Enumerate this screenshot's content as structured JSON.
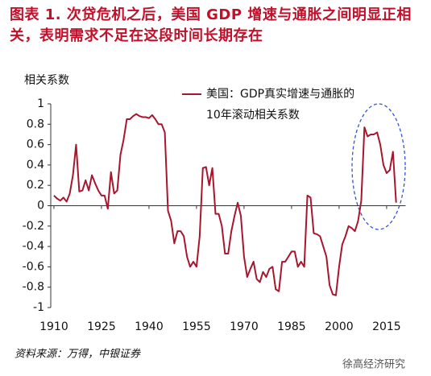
{
  "chart_data": {
    "type": "line",
    "title": "图表 1. 次贷危机之后，美国 GDP 增速与通胀之间明显正相关，表明需求不足在这段时间长期存在",
    "y_label": "相关系数",
    "source": "资料来源：万得，中银证券",
    "watermark": "徐高经济研究",
    "x": [
      1910,
      1911,
      1912,
      1913,
      1914,
      1915,
      1916,
      1917,
      1918,
      1919,
      1920,
      1921,
      1922,
      1923,
      1924,
      1925,
      1926,
      1927,
      1928,
      1929,
      1930,
      1931,
      1932,
      1933,
      1934,
      1935,
      1936,
      1937,
      1938,
      1939,
      1940,
      1941,
      1942,
      1943,
      1944,
      1945,
      1946,
      1947,
      1948,
      1949,
      1950,
      1951,
      1952,
      1953,
      1954,
      1955,
      1956,
      1957,
      1958,
      1959,
      1960,
      1961,
      1962,
      1963,
      1964,
      1965,
      1966,
      1967,
      1968,
      1969,
      1970,
      1971,
      1972,
      1973,
      1974,
      1975,
      1976,
      1977,
      1978,
      1979,
      1980,
      1981,
      1982,
      1983,
      1984,
      1985,
      1986,
      1987,
      1988,
      1989,
      1990,
      1991,
      1992,
      1993,
      1994,
      1995,
      1996,
      1997,
      1998,
      1999,
      2000,
      2001,
      2002,
      2003,
      2004,
      2005,
      2006,
      2007,
      2008,
      2009,
      2010,
      2011,
      2012,
      2013,
      2014,
      2015,
      2016,
      2017,
      2018
    ],
    "series": [
      {
        "name": "美国：GDP真实增速与通胀的10年滚动相关系数",
        "color": "#a8162e",
        "values": [
          0.1,
          0.07,
          0.05,
          0.08,
          0.04,
          0.12,
          0.3,
          0.6,
          0.14,
          0.15,
          0.25,
          0.15,
          0.3,
          0.22,
          0.15,
          0.1,
          0.1,
          -0.03,
          0.33,
          0.12,
          0.15,
          0.5,
          0.65,
          0.85,
          0.85,
          0.88,
          0.9,
          0.88,
          0.87,
          0.87,
          0.86,
          0.89,
          0.85,
          0.8,
          0.8,
          0.72,
          -0.05,
          -0.15,
          -0.37,
          -0.25,
          -0.25,
          -0.3,
          -0.5,
          -0.6,
          -0.55,
          -0.6,
          -0.3,
          0.37,
          0.38,
          0.2,
          0.37,
          -0.08,
          -0.08,
          -0.2,
          -0.47,
          -0.47,
          -0.25,
          -0.1,
          0.03,
          -0.1,
          -0.5,
          -0.7,
          -0.62,
          -0.55,
          -0.72,
          -0.75,
          -0.65,
          -0.7,
          -0.62,
          -0.6,
          -0.82,
          -0.84,
          -0.55,
          -0.55,
          -0.5,
          -0.45,
          -0.45,
          -0.6,
          -0.55,
          -0.6,
          0.1,
          0.08,
          -0.27,
          -0.28,
          -0.3,
          -0.4,
          -0.5,
          -0.78,
          -0.87,
          -0.88,
          -0.6,
          -0.38,
          -0.3,
          -0.2,
          -0.22,
          -0.25,
          -0.15,
          0.05,
          0.77,
          0.68,
          0.7,
          0.7,
          0.72,
          0.6,
          0.4,
          0.32,
          0.35,
          0.53,
          0.03
        ]
      }
    ],
    "xlim": [
      1909,
      2021
    ],
    "xticks": [
      1910,
      1925,
      1940,
      1955,
      1970,
      1985,
      2000,
      2015
    ],
    "ylim": [
      -1,
      1
    ],
    "yticks": [
      -1,
      -0.8,
      -0.6,
      -0.4,
      -0.2,
      0,
      0.2,
      0.4,
      0.6,
      0.8,
      1
    ],
    "grid": false
  }
}
